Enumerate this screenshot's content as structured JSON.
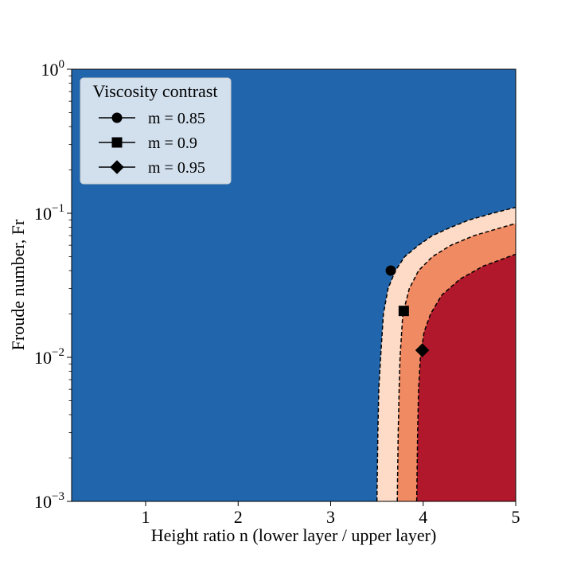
{
  "chart_data": {
    "type": "contour",
    "xlabel": "Height ratio n (lower layer / upper layer)",
    "ylabel": "Froude number, Fr",
    "xlim": [
      0.2,
      5
    ],
    "ylim": [
      0.001,
      1
    ],
    "yscale": "log",
    "x_ticks": [
      1,
      2,
      3,
      4,
      5
    ],
    "y_ticks": [
      {
        "value": 0.001,
        "base": "10",
        "exp": "−3"
      },
      {
        "value": 0.01,
        "base": "10",
        "exp": "−2"
      },
      {
        "value": 0.1,
        "base": "10",
        "exp": "−1"
      },
      {
        "value": 1,
        "base": "10",
        "exp": "0"
      }
    ],
    "colors": {
      "background": "#2166ac",
      "band_1": "#fddbc7",
      "band_2": "#ef8a62",
      "band_3": "#b2182b",
      "boundary": "#000000"
    },
    "contours": [
      {
        "name": "m = 0.85",
        "fill": "#fddbc7",
        "points": [
          [
            3.5,
            0.001
          ],
          [
            3.51,
            0.003
          ],
          [
            3.52,
            0.006
          ],
          [
            3.54,
            0.01
          ],
          [
            3.57,
            0.02
          ],
          [
            3.62,
            0.03
          ],
          [
            3.7,
            0.04
          ],
          [
            3.8,
            0.05
          ],
          [
            3.95,
            0.06
          ],
          [
            4.1,
            0.07
          ],
          [
            4.3,
            0.08
          ],
          [
            4.5,
            0.09
          ],
          [
            4.75,
            0.1
          ],
          [
            5.0,
            0.11
          ]
        ]
      },
      {
        "name": "m = 0.9",
        "fill": "#ef8a62",
        "points": [
          [
            3.72,
            0.001
          ],
          [
            3.73,
            0.003
          ],
          [
            3.74,
            0.006
          ],
          [
            3.75,
            0.01
          ],
          [
            3.78,
            0.02
          ],
          [
            3.85,
            0.03
          ],
          [
            3.95,
            0.04
          ],
          [
            4.1,
            0.05
          ],
          [
            4.3,
            0.06
          ],
          [
            4.55,
            0.07
          ],
          [
            4.8,
            0.078
          ],
          [
            5.0,
            0.085
          ]
        ]
      },
      {
        "name": "m = 0.95",
        "fill": "#b2182b",
        "points": [
          [
            3.93,
            0.001
          ],
          [
            3.94,
            0.003
          ],
          [
            3.95,
            0.006
          ],
          [
            3.97,
            0.01
          ],
          [
            4.01,
            0.015
          ],
          [
            4.08,
            0.02
          ],
          [
            4.2,
            0.027
          ],
          [
            4.4,
            0.035
          ],
          [
            4.65,
            0.043
          ],
          [
            5.0,
            0.052
          ]
        ]
      }
    ],
    "markers": [
      {
        "name": "m = 0.85",
        "shape": "circle",
        "x": 3.65,
        "y": 0.04
      },
      {
        "name": "m = 0.9",
        "shape": "square",
        "x": 3.79,
        "y": 0.021
      },
      {
        "name": "m = 0.95",
        "shape": "diamond",
        "x": 3.99,
        "y": 0.0112
      }
    ],
    "legend": {
      "title": "Viscosity contrast",
      "position": "top-left",
      "entries": [
        {
          "label": "m = 0.85",
          "shape": "circle"
        },
        {
          "label": "m = 0.9",
          "shape": "square"
        },
        {
          "label": "m = 0.95",
          "shape": "diamond"
        }
      ]
    }
  }
}
